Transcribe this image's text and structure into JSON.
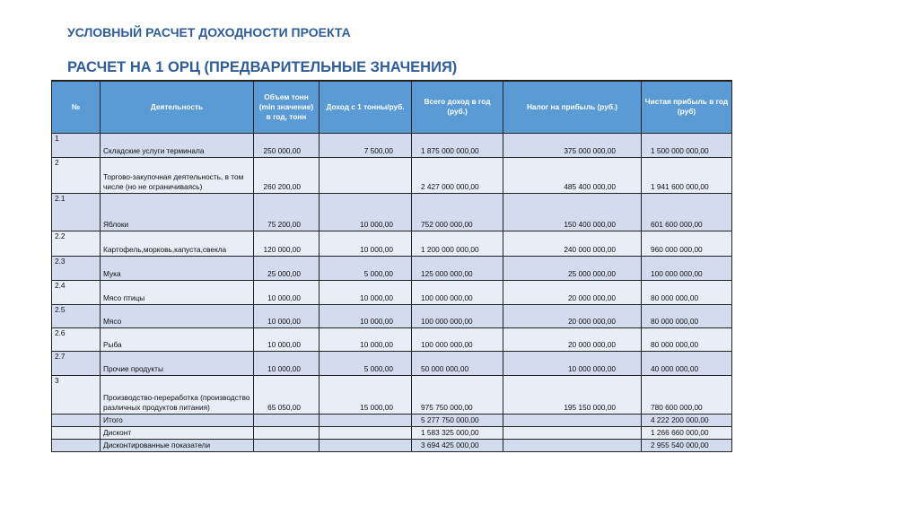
{
  "title": "УСЛОВНЫЙ РАСЧЕТ ДОХОДНОСТИ ПРОЕКТА",
  "subtitle": "РАСЧЕТ НА 1 ОРЦ (ПРЕДВАРИТЕЛЬНЫЕ ЗНАЧЕНИЯ)",
  "colors": {
    "title": "#2e5d9a",
    "header_bg": "#5b9bd5",
    "row_dark": "#d3dcee",
    "row_light": "#e9edf5"
  },
  "table": {
    "headers": [
      "№",
      "Деятельность",
      "Объем тонн (min значение) в год, тонн",
      "Доход с 1 тонны/руб.",
      "Всего доход в год (руб.)",
      "Налог на прибыль (руб.)",
      "Чистая прибыль в год (руб)"
    ],
    "rows": [
      [
        "1",
        "Складские услуги терминала",
        "250 000,00",
        "7 500,00",
        "1 875 000 000,00",
        "375 000 000,00",
        "1 500 000 000,00"
      ],
      [
        "2",
        "Торгово-закупочная деятельность, в том числе (но не ограничиваясь)",
        "260 200,00",
        "",
        "2 427 000 000,00",
        "485 400 000,00",
        "1 941 600 000,00"
      ],
      [
        "2.1",
        "Яблоки",
        "75 200,00",
        "10 000,00",
        "752 000 000,00",
        "150 400 000,00",
        "601 600 000,00"
      ],
      [
        "2.2",
        "Картофель,морковь,капуста,свекла",
        "120 000,00",
        "10 000,00",
        "1 200 000 000,00",
        "240 000 000,00",
        "960 000 000,00"
      ],
      [
        "2.3",
        "Мука",
        "25 000,00",
        "5 000,00",
        "125 000 000,00",
        "25 000 000,00",
        "100 000 000,00"
      ],
      [
        "2.4",
        "Мясо птицы",
        "10 000,00",
        "10 000,00",
        "100 000 000,00",
        "20 000 000,00",
        "80 000 000,00"
      ],
      [
        "2.5",
        "Мясо",
        "10 000,00",
        "10 000,00",
        "100 000 000,00",
        "20 000 000,00",
        "80 000 000,00"
      ],
      [
        "2.6",
        "Рыба",
        "10 000,00",
        "10 000,00",
        "100 000 000,00",
        "20 000 000,00",
        "80 000 000,00"
      ],
      [
        "2.7",
        "Прочие продукты",
        "10 000,00",
        "5 000,00",
        "50 000 000,00",
        "10 000 000,00",
        "40 000 000,00"
      ],
      [
        "3",
        "Производство-переработка (производство различных продуктов питания)",
        "65 050,00",
        "15 000,00",
        "975 750 000,00",
        "195 150 000,00",
        "780 600 000,00"
      ],
      [
        "",
        "Итого",
        "",
        "",
        "5 277 750 000,00",
        "",
        "4 222 200 000,00"
      ],
      [
        "",
        "Дисконт",
        "",
        "",
        "1 583 325 000,00",
        "",
        "1 266 660 000,00"
      ],
      [
        "",
        "Дисконтированные показатели",
        "",
        "",
        "3 694 425 000,00",
        "",
        "2 955 540 000,00"
      ]
    ]
  }
}
